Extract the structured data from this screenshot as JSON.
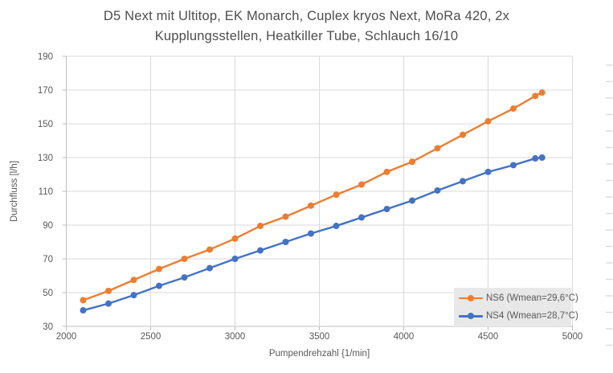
{
  "chart_data": {
    "type": "line",
    "title_lines": [
      "D5 Next mit Ultitop, EK Monarch, Cuplex kryos Next, MoRa 420,  2x",
      "Kupplungsstellen, Heatkiller Tube, Schlauch 16/10"
    ],
    "xlabel": "Pumpendrehzahl {1/min]",
    "ylabel": "Durchfluss [l/h]",
    "xlim": [
      2000,
      5000
    ],
    "ylim": [
      30,
      190
    ],
    "x_ticks": [
      2000,
      2500,
      3000,
      3500,
      4000,
      4500,
      5000
    ],
    "y_ticks": [
      30,
      50,
      70,
      90,
      110,
      130,
      150,
      170,
      190
    ],
    "grid": true,
    "legend_position": "inside-bottom-right",
    "x": [
      2100,
      2250,
      2400,
      2550,
      2700,
      2850,
      3000,
      3150,
      3300,
      3450,
      3600,
      3750,
      3900,
      4050,
      4200,
      4350,
      4500,
      4650,
      4780,
      4820
    ],
    "series": [
      {
        "name": "NS6 (Wmean=29,6°C)",
        "color": "#ED7D31",
        "values": [
          45.5,
          51,
          57.5,
          64,
          70,
          75.5,
          82,
          89.5,
          95,
          101.5,
          108,
          114,
          121.5,
          127.5,
          135.5,
          143.5,
          151.5,
          159,
          166.5,
          168.5
        ]
      },
      {
        "name": "NS4 (Wmean=28,7°C)",
        "color": "#4472C4",
        "values": [
          39.5,
          43.5,
          48.5,
          54,
          59,
          64.5,
          70,
          75,
          80,
          85,
          89.5,
          94.5,
          99.5,
          104.5,
          110.5,
          116,
          121.5,
          125.5,
          129.5,
          130
        ]
      }
    ]
  },
  "style_colors": {
    "gridline": "#d9d9d9",
    "axis_line": "#bfbfbf",
    "tick_label": "#595959",
    "legend_bg": "#e8e8e8",
    "title": "#4d4d4d",
    "edge_dash": "#d9d9d9"
  }
}
